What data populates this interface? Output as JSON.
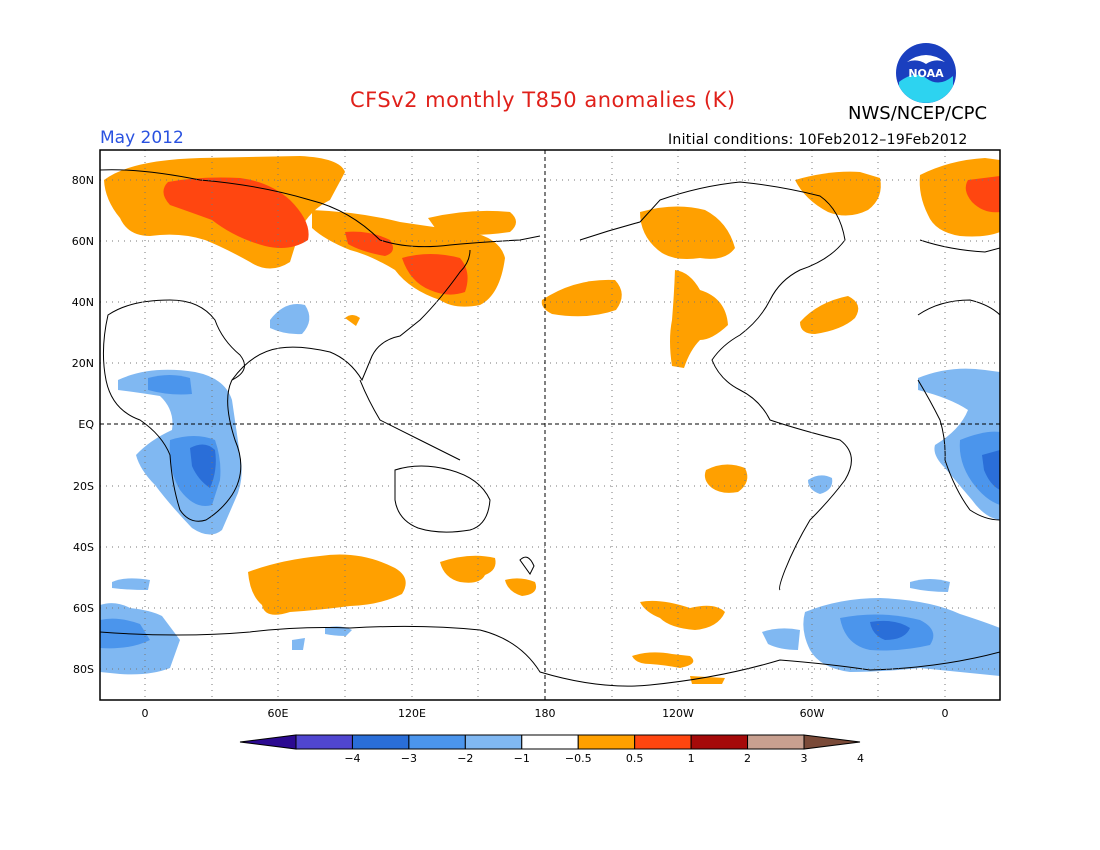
{
  "header": {
    "title": "CFSv2 monthly T850 anomalies (K)",
    "period": "May 2012",
    "initial_conditions": "Initial conditions: 10Feb2012–19Feb2012",
    "agency": "NWS/NCEP/CPC",
    "logo_text": "NOAA"
  },
  "map": {
    "projection": "equirectangular",
    "lon_range": [
      -20,
      380
    ],
    "lat_range": [
      -90,
      90
    ],
    "lat_labels": [
      "80N",
      "60N",
      "40N",
      "20N",
      "EQ",
      "20S",
      "40S",
      "60S",
      "80S"
    ],
    "lon_labels": [
      "0",
      "60E",
      "120E",
      "180",
      "120W",
      "60W",
      "0"
    ]
  },
  "legend": {
    "labels": [
      "−4",
      "−3",
      "−2",
      "−1",
      "−0.5",
      "0.5",
      "1",
      "2",
      "3",
      "4"
    ],
    "colors": [
      "#2c0a91",
      "#5046d0",
      "#2a6ed8",
      "#4b95ec",
      "#80b8f2",
      "#ffffff",
      "#ffa000",
      "#ff4610",
      "#a50a0a",
      "#c8a090",
      "#7a4a38"
    ]
  },
  "colors": {
    "warm_1": "#ffa000",
    "warm_2": "#ff4610",
    "cool_1": "#80b8f2",
    "cool_2": "#4b95ec",
    "cool_3": "#2a6ed8",
    "title": "#e0201a",
    "period": "#2a52e0"
  }
}
